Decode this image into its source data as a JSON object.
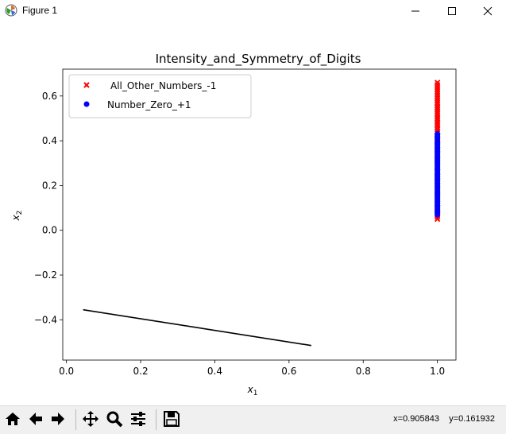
{
  "window": {
    "title": "Figure 1",
    "controls": [
      "minimize",
      "maximize",
      "close"
    ]
  },
  "toolbar": {
    "buttons": [
      "home-icon",
      "back-icon",
      "forward-icon",
      "pan-icon",
      "zoom-icon",
      "configure-subplots-icon",
      "save-icon"
    ],
    "coords_x": "x=0.905843",
    "coords_y": "y=0.161932"
  },
  "chart_data": {
    "type": "scatter",
    "title": "Intensity_and_Symmetry_of_Digits",
    "xlabel_base": "x",
    "xlabel_sub": "1",
    "ylabel_base": "x",
    "ylabel_sub": "2",
    "xlim": [
      -0.01,
      1.05
    ],
    "ylim": [
      -0.58,
      0.72
    ],
    "x_ticks": [
      0.0,
      0.2,
      0.4,
      0.6,
      0.8,
      1.0
    ],
    "x_tick_labels": [
      "0.0",
      "0.2",
      "0.4",
      "0.6",
      "0.8",
      "1.0"
    ],
    "y_ticks": [
      -0.4,
      -0.2,
      0.0,
      0.2,
      0.4,
      0.6
    ],
    "y_tick_labels": [
      "−0.4",
      "−0.2",
      "0.0",
      "0.2",
      "0.4",
      "0.6"
    ],
    "legend_position": "upper-left",
    "grid": false,
    "series": [
      {
        "name": "All_Other_Numbers_-1",
        "marker": "x",
        "color": "#ff0000",
        "x": [
          1.0,
          1.0,
          1.0,
          1.0,
          1.0,
          1.0,
          1.0,
          1.0,
          1.0,
          1.0,
          1.0,
          1.0,
          1.0,
          1.0,
          1.0,
          1.0,
          1.0,
          1.0,
          1.0,
          1.0,
          1.0,
          1.0,
          1.0,
          1.0,
          1.0,
          1.0,
          1.0,
          1.0,
          1.0,
          1.0,
          1.0,
          1.0,
          1.0,
          1.0,
          1.0,
          1.0,
          1.0,
          1.0,
          1.0,
          1.0,
          1.0,
          1.0,
          1.0,
          1.0,
          1.0,
          1.0,
          1.0,
          1.0,
          1.0
        ],
        "y": [
          0.05,
          0.06,
          0.07,
          0.08,
          0.09,
          0.1,
          0.12,
          0.14,
          0.16,
          0.18,
          0.2,
          0.22,
          0.24,
          0.26,
          0.28,
          0.3,
          0.32,
          0.34,
          0.36,
          0.38,
          0.4,
          0.42,
          0.44,
          0.45,
          0.46,
          0.47,
          0.48,
          0.49,
          0.5,
          0.51,
          0.52,
          0.53,
          0.54,
          0.55,
          0.56,
          0.57,
          0.58,
          0.59,
          0.6,
          0.61,
          0.62,
          0.63,
          0.64,
          0.65,
          0.66,
          0.55,
          0.5,
          0.47,
          0.44
        ]
      },
      {
        "name": "Number_Zero_+1",
        "marker": "o",
        "color": "#0000ff",
        "x": [
          1.0,
          1.0,
          1.0,
          1.0,
          1.0,
          1.0,
          1.0,
          1.0,
          1.0,
          1.0,
          1.0,
          1.0,
          1.0,
          1.0,
          1.0,
          1.0,
          1.0,
          1.0,
          1.0,
          1.0,
          1.0,
          1.0,
          1.0,
          1.0,
          1.0,
          1.0,
          1.0,
          1.0,
          1.0,
          1.0,
          1.0,
          1.0,
          1.0,
          1.0,
          1.0,
          1.0,
          1.0
        ],
        "y": [
          0.07,
          0.08,
          0.09,
          0.1,
          0.11,
          0.12,
          0.13,
          0.14,
          0.15,
          0.16,
          0.17,
          0.18,
          0.19,
          0.2,
          0.21,
          0.22,
          0.23,
          0.24,
          0.25,
          0.26,
          0.27,
          0.28,
          0.29,
          0.3,
          0.31,
          0.32,
          0.33,
          0.34,
          0.35,
          0.36,
          0.37,
          0.38,
          0.39,
          0.4,
          0.41,
          0.42,
          0.43
        ]
      }
    ],
    "lines": [
      {
        "name": "decision-boundary",
        "color": "#000000",
        "x": [
          0.045,
          0.66
        ],
        "y": [
          -0.355,
          -0.515
        ]
      }
    ]
  }
}
